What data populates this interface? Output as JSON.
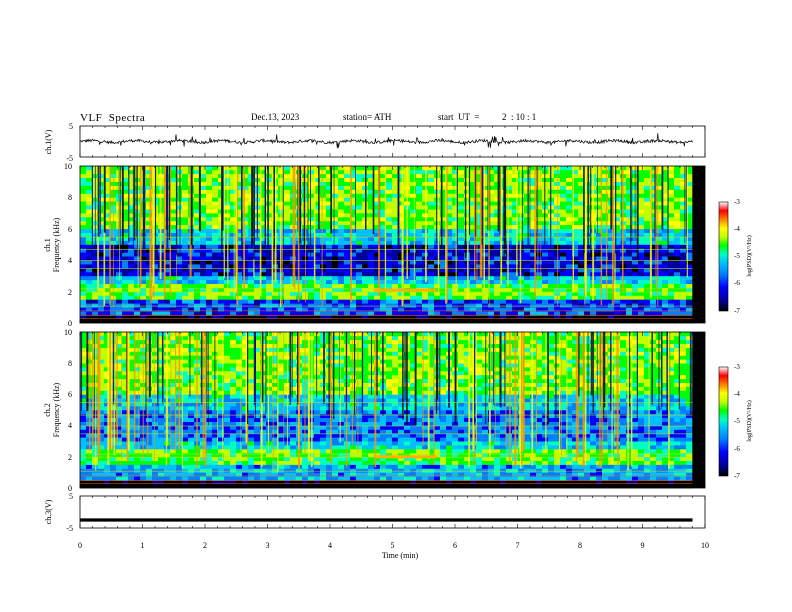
{
  "header": {
    "title": "VLF  Spectra",
    "date": "Dec.13, 2023",
    "station": "station= ATH",
    "start_label": "start  UT  =",
    "start_time": "2  : 10 : 1"
  },
  "chart_data": [
    {
      "type": "line",
      "panel": "ch1-waveform",
      "ylabel": "ch.1(V)",
      "yticks": [
        "5",
        "-5"
      ],
      "ylim": [
        -5,
        5
      ],
      "xlim": [
        0,
        9.8
      ],
      "baseline": 0,
      "grid": false
    },
    {
      "type": "heatmap",
      "panel": "ch1-spectrogram",
      "ylabel_line1": "ch.1",
      "ylabel_line2": "Frequency (kHz)",
      "yticks": [
        "10",
        "8",
        "6",
        "4",
        "2",
        "0"
      ],
      "ylim": [
        0,
        10
      ],
      "xlim": [
        0,
        9.8
      ],
      "colorbar": {
        "label": "log(PSD)(V²/Hz)",
        "ticks": [
          "-3",
          "-4",
          "-5",
          "-6",
          "-7"
        ],
        "range": [
          -7,
          -3
        ]
      },
      "features": [
        {
          "desc": "enhanced band",
          "freq_khz": 2.1,
          "t_start": 4.7,
          "t_end": 5.7
        }
      ]
    },
    {
      "type": "heatmap",
      "panel": "ch2-spectrogram",
      "ylabel_line1": "ch.2",
      "ylabel_line2": "Frequency (kHz)",
      "yticks": [
        "10",
        "8",
        "6",
        "4",
        "2",
        "0"
      ],
      "ylim": [
        0,
        10
      ],
      "xlim": [
        0,
        9.8
      ],
      "colorbar": {
        "label": "log(PSD)(V²/Hz)",
        "ticks": [
          "-3",
          "-4",
          "-5",
          "-6",
          "-7"
        ],
        "range": [
          -7,
          -3
        ]
      },
      "features": [
        {
          "desc": "enhanced band",
          "freq_khz": 2.0,
          "t_start": 4.7,
          "t_end": 5.7
        }
      ]
    },
    {
      "type": "line",
      "panel": "ch3-waveform",
      "ylabel": "ch.3(V)",
      "yticks": [
        "5",
        "-5"
      ],
      "ylim": [
        -5,
        5
      ],
      "xlim": [
        0,
        9.8
      ],
      "baseline": -2.5,
      "grid": false
    }
  ],
  "xaxis": {
    "label": "Time  (min)",
    "ticks": [
      "0",
      "1",
      "2",
      "3",
      "4",
      "5",
      "6",
      "7",
      "8",
      "9",
      "10"
    ],
    "range": [
      0,
      10
    ]
  },
  "colors": {
    "ink": "#000000",
    "colormap": [
      "#000000",
      "#0000a0",
      "#0000ff",
      "#0080ff",
      "#00c0ff",
      "#00ffc0",
      "#00ff00",
      "#c0ff00",
      "#ffff00",
      "#ff8000",
      "#ff0000",
      "#ffffff"
    ]
  }
}
